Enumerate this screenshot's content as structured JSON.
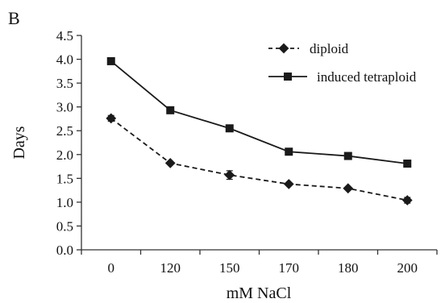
{
  "panel_label": "B",
  "chart_data": {
    "type": "line",
    "categories": [
      "0",
      "120",
      "150",
      "170",
      "180",
      "200"
    ],
    "series": [
      {
        "name": "diploid",
        "values": [
          2.76,
          1.82,
          1.57,
          1.38,
          1.29,
          1.04
        ],
        "errors": [
          0.06,
          0.0,
          0.09,
          0.0,
          0.0,
          0.06
        ],
        "line_style": "dashed",
        "marker": "diamond",
        "color": "#1a1a1a"
      },
      {
        "name": "induced tetraploid",
        "values": [
          3.96,
          2.93,
          2.55,
          2.06,
          1.97,
          1.81
        ],
        "errors": [
          0,
          0,
          0,
          0,
          0,
          0
        ],
        "line_style": "solid",
        "marker": "square",
        "color": "#1a1a1a"
      }
    ],
    "xlabel": "mM NaCl",
    "ylabel": "Days",
    "ylim": [
      0,
      4.5
    ],
    "yticks": [
      "0.0",
      "0.5",
      "1.0",
      "1.5",
      "2.0",
      "2.5",
      "3.0",
      "3.5",
      "4.0",
      "4.5"
    ],
    "grid": false,
    "legend_position": "top-right"
  }
}
